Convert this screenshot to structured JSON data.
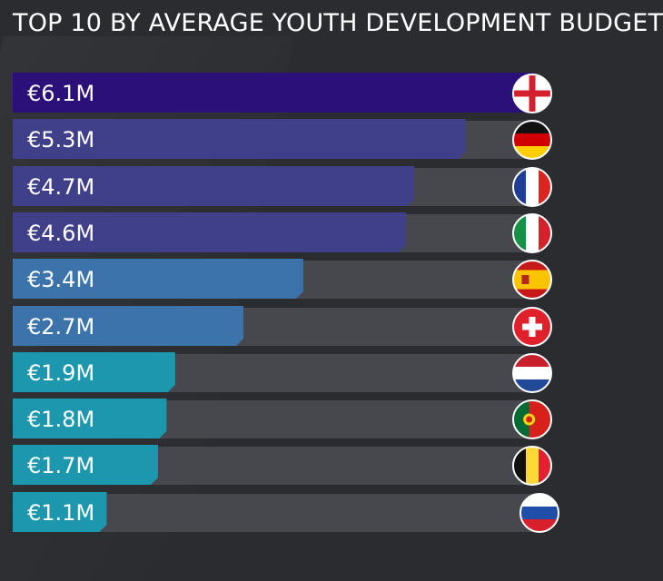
{
  "chart_data": {
    "type": "bar",
    "orientation": "horizontal",
    "title": "TOP 10 BY AVERAGE YOUTH DEVELOPMENT BUDGET",
    "unit": "€M",
    "xlim": [
      0,
      6.1
    ],
    "categories": [
      "England",
      "Germany",
      "France",
      "Italy",
      "Spain",
      "Switzerland",
      "Netherlands",
      "Portugal",
      "Belgium",
      "Russia"
    ],
    "values": [
      6.1,
      5.3,
      4.7,
      4.6,
      3.4,
      2.7,
      1.9,
      1.8,
      1.7,
      1.1
    ],
    "labels": [
      "€6.1M",
      "€5.3M",
      "€4.7M",
      "€4.6M",
      "€3.4M",
      "€2.7M",
      "€1.9M",
      "€1.8M",
      "€1.7M",
      "€1.1M"
    ],
    "colors": [
      "#2a1078",
      "#403f8a",
      "#403f8a",
      "#403f8a",
      "#3c73ab",
      "#3c73ab",
      "#1d97ad",
      "#1d97ad",
      "#1d97ad",
      "#1d97ad"
    ],
    "track_color": "#46484d"
  }
}
